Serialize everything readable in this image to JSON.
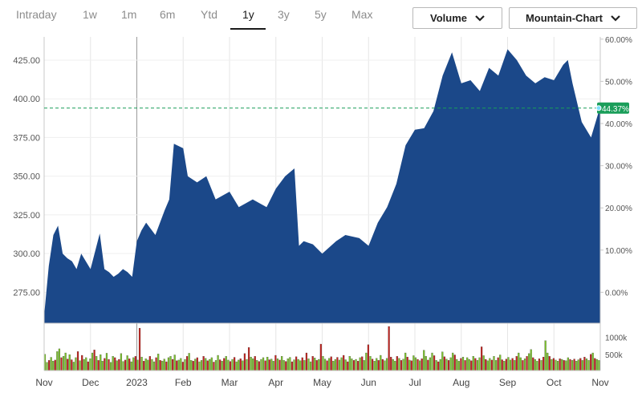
{
  "timeframes": [
    "Intraday",
    "1w",
    "1m",
    "6m",
    "Ytd",
    "1y",
    "3y",
    "5y",
    "Max"
  ],
  "active_timeframe": "1y",
  "controls": {
    "volume_label": "Volume",
    "chart_type_label": "Mountain-Chart"
  },
  "colors": {
    "area": "#1b4889",
    "accent": "#1a9e5a",
    "volume_up": "#7cc42b",
    "volume_down": "#c7221d"
  },
  "chart_data": {
    "type": "area",
    "title": "",
    "xlabel": "",
    "ylabel": "",
    "ylim": [
      255,
      440
    ],
    "y_ticks": [
      "275.00",
      "300.00",
      "325.00",
      "350.00",
      "375.00",
      "400.00",
      "425.00"
    ],
    "y_tick_values": [
      275,
      300,
      325,
      350,
      375,
      400,
      425
    ],
    "pct_ticks": [
      "0.00%",
      "10.00%",
      "20.00%",
      "30.00%",
      "40.00%",
      "50.00%",
      "60.00%"
    ],
    "pct_tick_values": [
      0,
      10,
      20,
      30,
      40,
      50,
      60
    ],
    "x_labels": [
      "Nov",
      "Dec",
      "2023",
      "Feb",
      "Mar",
      "Apr",
      "May",
      "Jun",
      "Jul",
      "Aug",
      "Sep",
      "Oct",
      "Nov"
    ],
    "x_label_positions": [
      0,
      1,
      2,
      3,
      4,
      5,
      6,
      7,
      8,
      9,
      10,
      11,
      12
    ],
    "reference_line": {
      "value": 394,
      "label": "44.37%"
    },
    "series": [
      {
        "x": [
          0,
          0.1,
          0.2,
          0.3,
          0.4,
          0.5,
          0.6,
          0.7,
          0.8,
          1.0,
          1.2,
          1.3,
          1.4,
          1.5,
          1.6,
          1.7,
          1.8,
          1.9,
          2.0,
          2.1,
          2.2,
          2.4,
          2.6,
          2.7,
          2.8,
          3.0,
          3.1,
          3.3,
          3.5,
          3.7,
          4.0,
          4.2,
          4.5,
          4.8,
          5.0,
          5.2,
          5.4,
          5.5,
          5.6,
          5.8,
          6.0,
          6.3,
          6.5,
          6.8,
          7.0,
          7.2,
          7.4,
          7.6,
          7.8,
          8.0,
          8.2,
          8.4,
          8.6,
          8.8,
          9.0,
          9.2,
          9.4,
          9.6,
          9.8,
          10.0,
          10.2,
          10.4,
          10.6,
          10.8,
          11.0,
          11.2,
          11.3,
          11.4,
          11.6,
          11.8,
          12.0
        ],
        "values": [
          260,
          292,
          312,
          318,
          300,
          297,
          295,
          290,
          300,
          290,
          313,
          290,
          288,
          285,
          287,
          290,
          288,
          285,
          308,
          315,
          320,
          312,
          328,
          335,
          371,
          368,
          350,
          346,
          350,
          335,
          340,
          330,
          335,
          330,
          342,
          350,
          355,
          305,
          308,
          306,
          300,
          308,
          312,
          310,
          305,
          320,
          330,
          345,
          370,
          380,
          381,
          392,
          415,
          430,
          410,
          412,
          405,
          420,
          415,
          432,
          425,
          415,
          410,
          414,
          412,
          422,
          425,
          410,
          385,
          375,
          395
        ]
      }
    ],
    "volume": {
      "y_ticks": [
        "1000k",
        "500k"
      ],
      "y_tick_values": [
        1000,
        500
      ],
      "values": [
        480,
        240,
        300,
        390,
        280,
        310,
        560,
        640,
        380,
        420,
        520,
        340,
        470,
        320,
        250,
        380,
        560,
        290,
        450,
        330,
        380,
        260,
        350,
        520,
        610,
        420,
        300,
        470,
        280,
        360,
        510,
        330,
        240,
        420,
        380,
        290,
        330,
        500,
        270,
        310,
        440,
        350,
        260,
        380,
        420,
        310,
        1250,
        400,
        280,
        350,
        310,
        420,
        330,
        260,
        380,
        490,
        300,
        280,
        340,
        260,
        380,
        420,
        330,
        460,
        290,
        310,
        360,
        250,
        330,
        420,
        510,
        300,
        280,
        340,
        380,
        260,
        300,
        420,
        360,
        290,
        330,
        380,
        250,
        300,
        450,
        320,
        280,
        360,
        420,
        310,
        270,
        330,
        390,
        260,
        310,
        350,
        290,
        500,
        330,
        680,
        400,
        350,
        420,
        300,
        270,
        330,
        380,
        290,
        400,
        320,
        340,
        280,
        450,
        350,
        310,
        420,
        300,
        270,
        350,
        390,
        260,
        320,
        410,
        330,
        290,
        380,
        300,
        520,
        350,
        260,
        420,
        370,
        300,
        330,
        780,
        420,
        340,
        290,
        360,
        410,
        280,
        330,
        390,
        310,
        380,
        450,
        320,
        260,
        420,
        350,
        300,
        330,
        280,
        380,
        410,
        300,
        520,
        760,
        420,
        340,
        280,
        360,
        300,
        450,
        330,
        290,
        360,
        1300,
        400,
        330,
        280,
        420,
        360,
        300,
        340,
        520,
        400,
        310,
        290,
        440,
        380,
        330,
        290,
        350,
        600,
        420,
        310,
        380,
        520,
        440,
        300,
        260,
        330,
        550,
        410,
        340,
        300,
        380,
        520,
        460,
        330,
        280,
        360,
        400,
        300,
        380,
        330,
        290,
        420,
        360,
        300,
        380,
        700,
        440,
        330,
        290,
        360,
        310,
        420,
        300,
        380,
        460,
        320,
        280,
        340,
        390,
        310,
        360,
        300,
        420,
        520,
        380,
        300,
        350,
        420,
        500,
        620,
        380,
        330,
        280,
        350,
        300,
        400,
        880,
        520,
        420,
        330,
        360,
        310,
        280,
        350,
        330,
        300,
        290,
        380,
        330,
        300,
        340,
        280,
        320,
        360,
        300,
        400,
        350,
        300,
        480,
        520,
        360,
        330,
        300
      ],
      "up": [
        1,
        1,
        0,
        1,
        1,
        0,
        1,
        1,
        0,
        1,
        1,
        0,
        1,
        0,
        1,
        1,
        0,
        1,
        0,
        1,
        1,
        0,
        1,
        1,
        0,
        1,
        0,
        1,
        1,
        0,
        1,
        0,
        1,
        1,
        0,
        1,
        0,
        1,
        1,
        0,
        1,
        0,
        1,
        1,
        0,
        1,
        0,
        1,
        0,
        1,
        1,
        0,
        1,
        1,
        0,
        1,
        0,
        1,
        1,
        0,
        1,
        1,
        0,
        1,
        0,
        1,
        1,
        0,
        1,
        0,
        1,
        1,
        0,
        1,
        0,
        1,
        1,
        0,
        1,
        0,
        1,
        1,
        0,
        1,
        1,
        0,
        1,
        0,
        1,
        1,
        0,
        1,
        0,
        1,
        1,
        0,
        1,
        0,
        1,
        0,
        1,
        1,
        0,
        1,
        0,
        1,
        1,
        0,
        1,
        0,
        1,
        1,
        0,
        1,
        0,
        1,
        1,
        0,
        1,
        1,
        0,
        1,
        0,
        1,
        1,
        0,
        1,
        0,
        1,
        1,
        0,
        1,
        0,
        1,
        0,
        1,
        1,
        0,
        1,
        0,
        1,
        1,
        0,
        1,
        1,
        0,
        1,
        0,
        1,
        1,
        0,
        1,
        0,
        1,
        0,
        1,
        1,
        0,
        1,
        0,
        1,
        1,
        0,
        1,
        0,
        1,
        1,
        0,
        0,
        1,
        1,
        0,
        1,
        0,
        1,
        1,
        0,
        1,
        0,
        1,
        1,
        0,
        1,
        0,
        1,
        1,
        0,
        1,
        1,
        0,
        1,
        0,
        1,
        1,
        0,
        1,
        0,
        1,
        1,
        0,
        1,
        1,
        0,
        1,
        0,
        1,
        1,
        0,
        1,
        0,
        1,
        1,
        0,
        1,
        0,
        1,
        1,
        0,
        1,
        1,
        0,
        1,
        0,
        1,
        0,
        1,
        1,
        0,
        1,
        0,
        1,
        1,
        0,
        1,
        0,
        1,
        1,
        0,
        1,
        1,
        0,
        1,
        0,
        1,
        1,
        0,
        1,
        0,
        1,
        1,
        0,
        1,
        0,
        1,
        1,
        0,
        1,
        0,
        1,
        1,
        0,
        1,
        0,
        1,
        1,
        0,
        1,
        0,
        1,
        1,
        0,
        1,
        0,
        1,
        0,
        1,
        1,
        0,
        1
      ]
    }
  }
}
